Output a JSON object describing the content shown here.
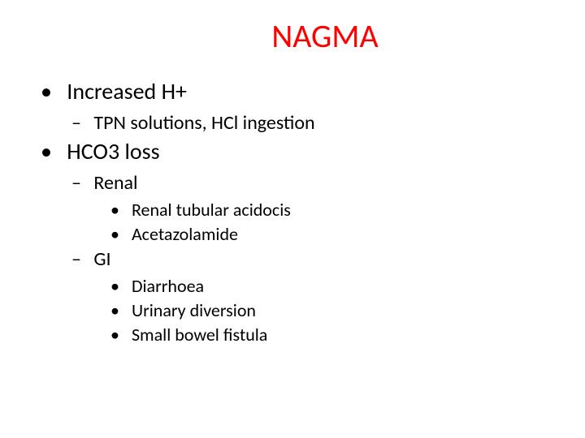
{
  "title": {
    "text": "NAGMA",
    "color": "#ff0000",
    "fontsize": 40
  },
  "bullets": {
    "level1_fontsize": 28,
    "level2_fontsize": 24,
    "level3_fontsize": 22,
    "text_color": "#000000",
    "items": [
      {
        "text": "Increased H+",
        "children": [
          {
            "text": "TPN solutions, HCl ingestion",
            "children": []
          }
        ]
      },
      {
        "text": "HCO3 loss",
        "children": [
          {
            "text": "Renal",
            "children": [
              {
                "text": "Renal tubular acidocis"
              },
              {
                "text": "Acetazolamide"
              }
            ]
          },
          {
            "text": "GI",
            "children": [
              {
                "text": "Diarrhoea"
              },
              {
                "text": "Urinary diversion"
              },
              {
                "text": "Small bowel fistula"
              }
            ]
          }
        ]
      }
    ]
  },
  "background_color": "#ffffff"
}
